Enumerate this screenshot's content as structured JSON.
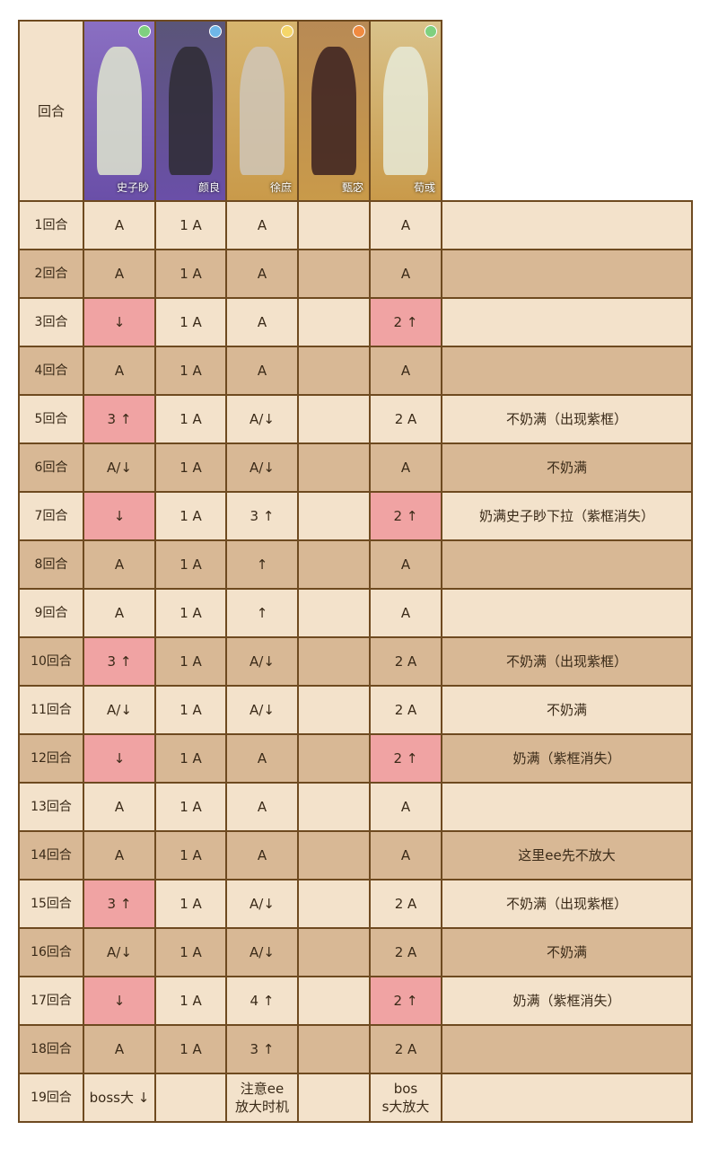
{
  "header": {
    "round_label": "回合",
    "characters": [
      {
        "name": "史子眇",
        "frame": "purple",
        "element": "wind",
        "bg": "#8a6fc2",
        "fig": "#dfe6cf",
        "elem_color": "#7fd07f"
      },
      {
        "name": "颜良",
        "frame": "purple",
        "element": "water",
        "bg": "#5a5578",
        "fig": "#2e2b33",
        "elem_color": "#6fb6e8"
      },
      {
        "name": "徐庶",
        "frame": "gold",
        "element": "light",
        "bg": "#d7b56e",
        "fig": "#cfc6b8",
        "elem_color": "#f5d66a"
      },
      {
        "name": "甄宓",
        "frame": "gold",
        "element": "fire",
        "bg": "#b88a55",
        "fig": "#3a2020",
        "elem_color": "#f08a40"
      },
      {
        "name": "荀彧",
        "frame": "gold",
        "element": "wind",
        "bg": "#d9c28a",
        "fig": "#e6ead8",
        "elem_color": "#7fd07f"
      }
    ]
  },
  "colors": {
    "light": "#f3e2cb",
    "dark": "#d8b895",
    "highlight": "#f0a3a3",
    "border": "#6e4a20"
  },
  "rows": [
    {
      "round": "1回合",
      "cells": [
        "A",
        "1 A",
        "A",
        "",
        "A"
      ],
      "hl": [],
      "note": ""
    },
    {
      "round": "2回合",
      "cells": [
        "A",
        "1 A",
        "A",
        "",
        "A"
      ],
      "hl": [],
      "note": ""
    },
    {
      "round": "3回合",
      "cells": [
        "↓",
        "1 A",
        "A",
        "",
        "2 ↑"
      ],
      "hl": [
        0,
        4
      ],
      "note": ""
    },
    {
      "round": "4回合",
      "cells": [
        "A",
        "1 A",
        "A",
        "",
        "A"
      ],
      "hl": [],
      "note": ""
    },
    {
      "round": "5回合",
      "cells": [
        "3 ↑",
        "1 A",
        "A/↓",
        "",
        "2 A"
      ],
      "hl": [
        0
      ],
      "note": "不奶满（出现紫框）"
    },
    {
      "round": "6回合",
      "cells": [
        "A/↓",
        "1 A",
        "A/↓",
        "",
        "A"
      ],
      "hl": [],
      "note": "不奶满"
    },
    {
      "round": "7回合",
      "cells": [
        "↓",
        "1 A",
        "3 ↑",
        "",
        "2 ↑"
      ],
      "hl": [
        0,
        4
      ],
      "note": "奶满史子眇下拉（紫框消失）"
    },
    {
      "round": "8回合",
      "cells": [
        "A",
        "1 A",
        "↑",
        "",
        "A"
      ],
      "hl": [],
      "note": ""
    },
    {
      "round": "9回合",
      "cells": [
        "A",
        "1 A",
        "↑",
        "",
        "A"
      ],
      "hl": [],
      "note": ""
    },
    {
      "round": "10回合",
      "cells": [
        "3 ↑",
        "1 A",
        "A/↓",
        "",
        "2 A"
      ],
      "hl": [
        0
      ],
      "note": "不奶满（出现紫框）"
    },
    {
      "round": "11回合",
      "cells": [
        "A/↓",
        "1 A",
        "A/↓",
        "",
        "2 A"
      ],
      "hl": [],
      "note": "不奶满"
    },
    {
      "round": "12回合",
      "cells": [
        "↓",
        "1 A",
        "A",
        "",
        "2 ↑"
      ],
      "hl": [
        0,
        4
      ],
      "note": "奶满（紫框消失）"
    },
    {
      "round": "13回合",
      "cells": [
        "A",
        "1 A",
        "A",
        "",
        "A"
      ],
      "hl": [],
      "note": ""
    },
    {
      "round": "14回合",
      "cells": [
        "A",
        "1 A",
        "A",
        "",
        "A"
      ],
      "hl": [],
      "note": "这里ee先不放大"
    },
    {
      "round": "15回合",
      "cells": [
        "3 ↑",
        "1 A",
        "A/↓",
        "",
        "2 A"
      ],
      "hl": [
        0
      ],
      "note": "不奶满（出现紫框）"
    },
    {
      "round": "16回合",
      "cells": [
        "A/↓",
        "1 A",
        "A/↓",
        "",
        "2 A"
      ],
      "hl": [],
      "note": "不奶满"
    },
    {
      "round": "17回合",
      "cells": [
        "↓",
        "1 A",
        "4 ↑",
        "",
        "2 ↑"
      ],
      "hl": [
        0,
        4
      ],
      "note": "奶满（紫框消失）"
    },
    {
      "round": "18回合",
      "cells": [
        "A",
        "1 A",
        "3 ↑",
        "",
        "2 A"
      ],
      "hl": [],
      "note": ""
    },
    {
      "round": "19回合",
      "cells": [
        "boss大 ↓",
        "",
        "注意ee\n放大时机",
        "",
        "bos\ns大放大"
      ],
      "hl": [],
      "note": ""
    }
  ]
}
